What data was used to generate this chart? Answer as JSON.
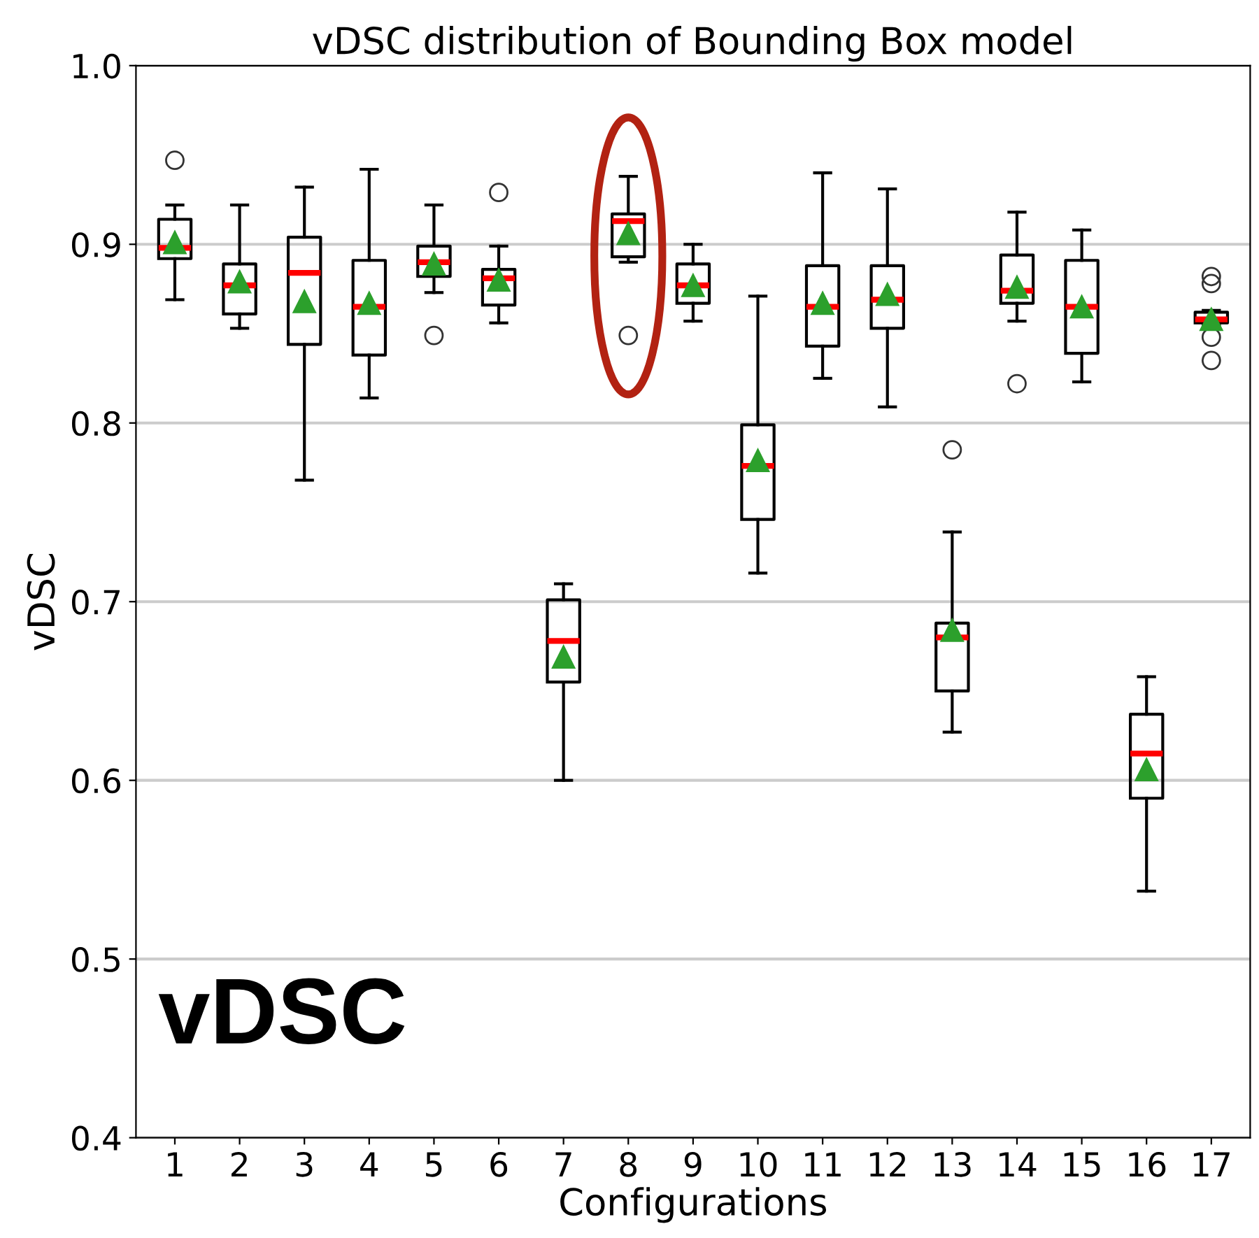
{
  "chart_data": {
    "type": "box",
    "title": "vDSC distribution of Bounding Box model",
    "xlabel": "Configurations",
    "ylabel": "vDSC",
    "categories": [
      "1",
      "2",
      "3",
      "4",
      "5",
      "6",
      "7",
      "8",
      "9",
      "10",
      "11",
      "12",
      "13",
      "14",
      "15",
      "16",
      "17"
    ],
    "ylim": [
      0.4,
      1.0
    ],
    "yticks": [
      0.4,
      0.5,
      0.6,
      0.7,
      0.8,
      0.9,
      {
        "value": 1,
        "label": "1.0"
      }
    ],
    "grid": "y",
    "annotations": [
      "vDSC"
    ],
    "boxes": [
      {
        "low": 0.869,
        "q1": 0.892,
        "median": 0.898,
        "q3": 0.914,
        "high": 0.922,
        "mean": 0.901,
        "outliers": [
          0.947
        ]
      },
      {
        "low": 0.853,
        "q1": 0.861,
        "median": 0.877,
        "q3": 0.889,
        "high": 0.922,
        "mean": 0.879
      },
      {
        "low": 0.768,
        "q1": 0.844,
        "median": 0.884,
        "q3": 0.904,
        "high": 0.932,
        "mean": 0.868
      },
      {
        "low": 0.814,
        "q1": 0.838,
        "median": 0.865,
        "q3": 0.891,
        "high": 0.942,
        "mean": 0.867
      },
      {
        "low": 0.873,
        "q1": 0.882,
        "median": 0.89,
        "q3": 0.899,
        "high": 0.922,
        "mean": 0.889,
        "outliers": [
          0.849
        ]
      },
      {
        "low": 0.856,
        "q1": 0.866,
        "median": 0.881,
        "q3": 0.886,
        "high": 0.899,
        "mean": 0.88,
        "outliers": [
          0.929
        ]
      },
      {
        "low": 0.6,
        "q1": 0.655,
        "median": 0.678,
        "q3": 0.701,
        "high": 0.71,
        "mean": 0.669
      },
      {
        "low": 0.89,
        "q1": 0.893,
        "median": 0.913,
        "q3": 0.917,
        "high": 0.938,
        "mean": 0.906,
        "outliers": [
          0.849
        ]
      },
      {
        "low": 0.857,
        "q1": 0.867,
        "median": 0.877,
        "q3": 0.889,
        "high": 0.9,
        "mean": 0.877
      },
      {
        "low": 0.716,
        "q1": 0.746,
        "median": 0.776,
        "q3": 0.799,
        "high": 0.871,
        "mean": 0.779
      },
      {
        "low": 0.825,
        "q1": 0.843,
        "median": 0.865,
        "q3": 0.888,
        "high": 0.94,
        "mean": 0.867
      },
      {
        "low": 0.809,
        "q1": 0.853,
        "median": 0.869,
        "q3": 0.888,
        "high": 0.931,
        "mean": 0.872
      },
      {
        "low": 0.627,
        "q1": 0.65,
        "median": 0.68,
        "q3": 0.688,
        "high": 0.739,
        "mean": 0.684,
        "outliers": [
          0.785
        ]
      },
      {
        "low": 0.857,
        "q1": 0.867,
        "median": 0.874,
        "q3": 0.894,
        "high": 0.918,
        "mean": 0.876,
        "outliers": [
          0.822
        ]
      },
      {
        "low": 0.823,
        "q1": 0.839,
        "median": 0.865,
        "q3": 0.891,
        "high": 0.908,
        "mean": 0.865
      },
      {
        "low": 0.538,
        "q1": 0.59,
        "median": 0.615,
        "q3": 0.637,
        "high": 0.658,
        "mean": 0.606
      },
      {
        "low": 0.855,
        "q1": 0.856,
        "median": 0.858,
        "q3": 0.862,
        "high": 0.863,
        "mean": 0.858,
        "outliers": [
          0.882,
          0.878,
          0.848,
          0.835
        ]
      }
    ]
  }
}
